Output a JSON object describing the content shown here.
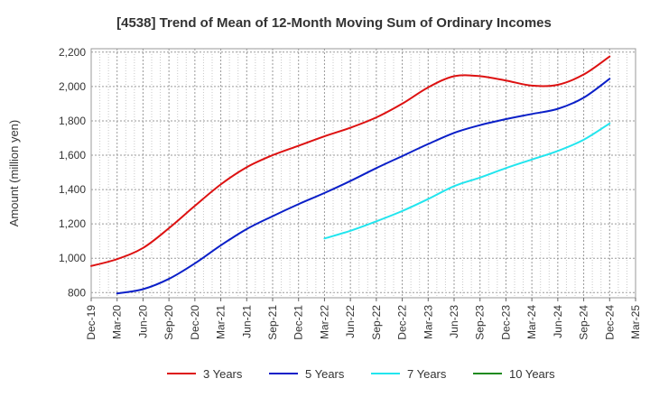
{
  "chart_data": {
    "type": "line",
    "title": "[4538]  Trend of Mean of 12-Month Moving Sum of Ordinary Incomes",
    "xlabel": "",
    "ylabel": "Amount (million yen)",
    "ylim": [
      770,
      2220
    ],
    "yticks": [
      800,
      1000,
      1200,
      1400,
      1600,
      1800,
      2000,
      2200
    ],
    "ytick_labels": [
      "800",
      "1,000",
      "1,200",
      "1,400",
      "1,600",
      "1,800",
      "2,000",
      "2,200"
    ],
    "xtick_labels": [
      "Dec-19",
      "Mar-20",
      "Jun-20",
      "Sep-20",
      "Dec-20",
      "Mar-21",
      "Jun-21",
      "Sep-21",
      "Dec-21",
      "Mar-22",
      "Jun-22",
      "Sep-22",
      "Dec-22",
      "Mar-23",
      "Jun-23",
      "Sep-23",
      "Dec-23",
      "Mar-24",
      "Jun-24",
      "Sep-24",
      "Dec-24",
      "Mar-25"
    ],
    "grid": true,
    "legend_position": "bottom",
    "series": [
      {
        "name": "3 Years",
        "color": "#dd1111",
        "points": [
          [
            "Dec-19",
            955
          ],
          [
            "Mar-20",
            995
          ],
          [
            "Jun-20",
            1060
          ],
          [
            "Sep-20",
            1175
          ],
          [
            "Dec-20",
            1305
          ],
          [
            "Mar-21",
            1430
          ],
          [
            "Jun-21",
            1530
          ],
          [
            "Sep-21",
            1600
          ],
          [
            "Dec-21",
            1655
          ],
          [
            "Mar-22",
            1710
          ],
          [
            "Jun-22",
            1760
          ],
          [
            "Sep-22",
            1820
          ],
          [
            "Dec-22",
            1900
          ],
          [
            "Mar-23",
            1995
          ],
          [
            "Jun-23",
            2060
          ],
          [
            "Sep-23",
            2060
          ],
          [
            "Dec-23",
            2035
          ],
          [
            "Mar-24",
            2005
          ],
          [
            "Jun-24",
            2010
          ],
          [
            "Sep-24",
            2070
          ],
          [
            "Dec-24",
            2175
          ]
        ]
      },
      {
        "name": "5 Years",
        "color": "#0a1fc8",
        "points": [
          [
            "Mar-20",
            795
          ],
          [
            "Jun-20",
            820
          ],
          [
            "Sep-20",
            880
          ],
          [
            "Dec-20",
            970
          ],
          [
            "Mar-21",
            1075
          ],
          [
            "Jun-21",
            1170
          ],
          [
            "Sep-21",
            1245
          ],
          [
            "Dec-21",
            1315
          ],
          [
            "Mar-22",
            1380
          ],
          [
            "Jun-22",
            1450
          ],
          [
            "Sep-22",
            1525
          ],
          [
            "Dec-22",
            1595
          ],
          [
            "Mar-23",
            1665
          ],
          [
            "Jun-23",
            1730
          ],
          [
            "Sep-23",
            1775
          ],
          [
            "Dec-23",
            1810
          ],
          [
            "Mar-24",
            1840
          ],
          [
            "Jun-24",
            1870
          ],
          [
            "Sep-24",
            1935
          ],
          [
            "Dec-24",
            2045
          ]
        ]
      },
      {
        "name": "7 Years",
        "color": "#22e5ee",
        "points": [
          [
            "Mar-22",
            1115
          ],
          [
            "Jun-22",
            1160
          ],
          [
            "Sep-22",
            1215
          ],
          [
            "Dec-22",
            1275
          ],
          [
            "Mar-23",
            1345
          ],
          [
            "Jun-23",
            1420
          ],
          [
            "Sep-23",
            1470
          ],
          [
            "Dec-23",
            1525
          ],
          [
            "Mar-24",
            1575
          ],
          [
            "Jun-24",
            1625
          ],
          [
            "Sep-24",
            1690
          ],
          [
            "Dec-24",
            1785
          ]
        ]
      },
      {
        "name": "10 Years",
        "color": "#1f8a1f",
        "points": []
      }
    ]
  }
}
